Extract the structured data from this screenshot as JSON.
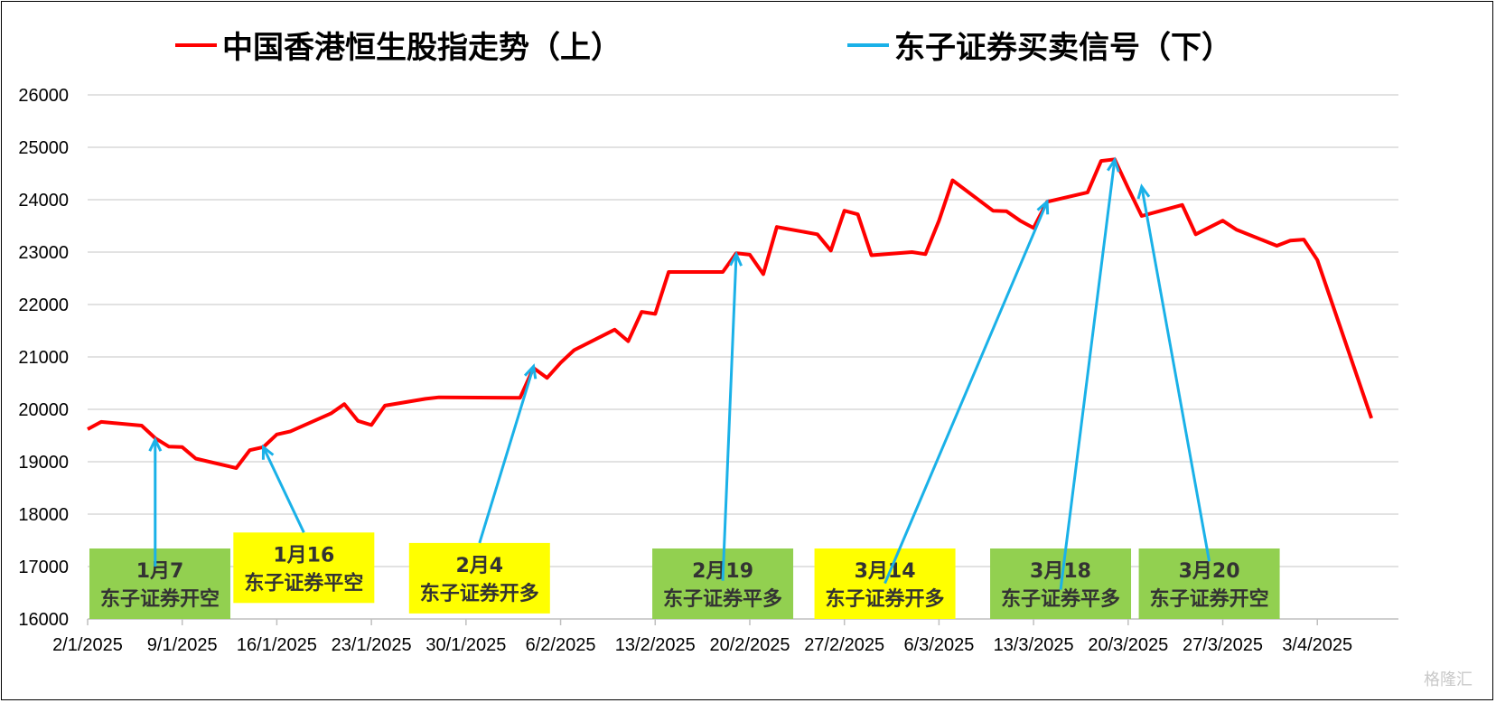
{
  "chart_data": {
    "type": "line",
    "title": "",
    "xlabel": "",
    "ylabel": "",
    "ylim": [
      16000,
      26000
    ],
    "yticks": [
      16000,
      17000,
      18000,
      19000,
      20000,
      21000,
      22000,
      23000,
      24000,
      25000,
      26000
    ],
    "xlim": [
      "2025-01-02",
      "2025-04-09"
    ],
    "xticks": [
      {
        "date": "2025-01-02",
        "label": "2/1/2025"
      },
      {
        "date": "2025-01-09",
        "label": "9/1/2025"
      },
      {
        "date": "2025-01-16",
        "label": "16/1/2025"
      },
      {
        "date": "2025-01-23",
        "label": "23/1/2025"
      },
      {
        "date": "2025-01-30",
        "label": "30/1/2025"
      },
      {
        "date": "2025-02-06",
        "label": "6/2/2025"
      },
      {
        "date": "2025-02-13",
        "label": "13/2/2025"
      },
      {
        "date": "2025-02-20",
        "label": "20/2/2025"
      },
      {
        "date": "2025-02-27",
        "label": "27/2/2025"
      },
      {
        "date": "2025-03-06",
        "label": "6/3/2025"
      },
      {
        "date": "2025-03-13",
        "label": "13/3/2025"
      },
      {
        "date": "2025-03-20",
        "label": "20/3/2025"
      },
      {
        "date": "2025-03-27",
        "label": "27/3/2025"
      },
      {
        "date": "2025-04-03",
        "label": "3/4/2025"
      }
    ],
    "grid": true,
    "legend_position": "top",
    "series": [
      {
        "name": "中国香港恒生股指走势（上）",
        "color": "#ff0000",
        "points": [
          [
            "2025-01-02",
            19620
          ],
          [
            "2025-01-03",
            19760
          ],
          [
            "2025-01-06",
            19690
          ],
          [
            "2025-01-07",
            19450
          ],
          [
            "2025-01-08",
            19290
          ],
          [
            "2025-01-09",
            19280
          ],
          [
            "2025-01-10",
            19060
          ],
          [
            "2025-01-13",
            18880
          ],
          [
            "2025-01-14",
            19220
          ],
          [
            "2025-01-15",
            19280
          ],
          [
            "2025-01-16",
            19520
          ],
          [
            "2025-01-17",
            19580
          ],
          [
            "2025-01-20",
            19920
          ],
          [
            "2025-01-21",
            20100
          ],
          [
            "2025-01-22",
            19780
          ],
          [
            "2025-01-23",
            19700
          ],
          [
            "2025-01-24",
            20070
          ],
          [
            "2025-01-27",
            20200
          ],
          [
            "2025-01-28",
            20230
          ],
          [
            "2025-02-03",
            20220
          ],
          [
            "2025-02-04",
            20790
          ],
          [
            "2025-02-05",
            20600
          ],
          [
            "2025-02-06",
            20890
          ],
          [
            "2025-02-07",
            21130
          ],
          [
            "2025-02-10",
            21520
          ],
          [
            "2025-02-11",
            21300
          ],
          [
            "2025-02-12",
            21860
          ],
          [
            "2025-02-13",
            21820
          ],
          [
            "2025-02-14",
            22620
          ],
          [
            "2025-02-17",
            22620
          ],
          [
            "2025-02-18",
            22620
          ],
          [
            "2025-02-19",
            22980
          ],
          [
            "2025-02-20",
            22950
          ],
          [
            "2025-02-21",
            22580
          ],
          [
            "2025-02-22",
            23480
          ],
          [
            "2025-02-25",
            23340
          ],
          [
            "2025-02-26",
            23030
          ],
          [
            "2025-02-27",
            23790
          ],
          [
            "2025-02-28",
            23720
          ],
          [
            "2025-03-01",
            22940
          ],
          [
            "2025-03-04",
            23000
          ],
          [
            "2025-03-05",
            22960
          ],
          [
            "2025-03-06",
            23600
          ],
          [
            "2025-03-07",
            24370
          ],
          [
            "2025-03-10",
            23790
          ],
          [
            "2025-03-11",
            23780
          ],
          [
            "2025-03-12",
            23600
          ],
          [
            "2025-03-13",
            23460
          ],
          [
            "2025-03-14",
            23960
          ],
          [
            "2025-03-17",
            24140
          ],
          [
            "2025-03-18",
            24740
          ],
          [
            "2025-03-19",
            24770
          ],
          [
            "2025-03-20",
            24220
          ],
          [
            "2025-03-21",
            23690
          ],
          [
            "2025-03-24",
            23900
          ],
          [
            "2025-03-25",
            23340
          ],
          [
            "2025-03-27",
            23600
          ],
          [
            "2025-03-28",
            23430
          ],
          [
            "2025-03-31",
            23120
          ],
          [
            "2025-04-01",
            23220
          ],
          [
            "2025-04-02",
            23240
          ],
          [
            "2025-04-03",
            22850
          ],
          [
            "2025-04-07",
            19830
          ]
        ]
      },
      {
        "name": "东子证券买卖信号（下）",
        "color": "#1ab1e8"
      }
    ],
    "signals": [
      {
        "date_line": "1月7",
        "action": "东子证券开空",
        "box_color": "#92d050",
        "point": [
          "2025-01-07",
          19420
        ],
        "tail": [
          "2025-01-07",
          17000
        ]
      },
      {
        "date_line": "1月16",
        "action": "东子证券平空",
        "box_color": "#ffff00",
        "point": [
          "2025-01-15",
          19280
        ],
        "tail": [
          "2025-01-18",
          17650
        ]
      },
      {
        "date_line": "2月4",
        "action": "东子证券开多",
        "box_color": "#ffff00",
        "point": [
          "2025-02-04",
          20820
        ],
        "tail": [
          "2025-01-31",
          17450
        ]
      },
      {
        "date_line": "2月19",
        "action": "东子证券平多",
        "box_color": "#92d050",
        "point": [
          "2025-02-19",
          22960
        ],
        "tail": [
          "2025-02-18",
          16730
        ]
      },
      {
        "date_line": "3月14",
        "action": "东子证券开多",
        "box_color": "#ffff00",
        "point": [
          "2025-03-14",
          23960
        ],
        "tail": [
          "2025-03-02",
          16680
        ]
      },
      {
        "date_line": "3月18",
        "action": "东子证券平多",
        "box_color": "#92d050",
        "point": [
          "2025-03-19",
          24760
        ],
        "tail": [
          "2025-03-15",
          16560
        ]
      },
      {
        "date_line": "3月20",
        "action": "东子证券开空",
        "box_color": "#92d050",
        "point": [
          "2025-03-21",
          24250
        ],
        "tail": [
          "2025-03-26",
          17100
        ]
      }
    ]
  },
  "watermark": "格隆汇",
  "colors": {
    "grid": "#d9d9d9",
    "axis": "#bfbfbf"
  }
}
